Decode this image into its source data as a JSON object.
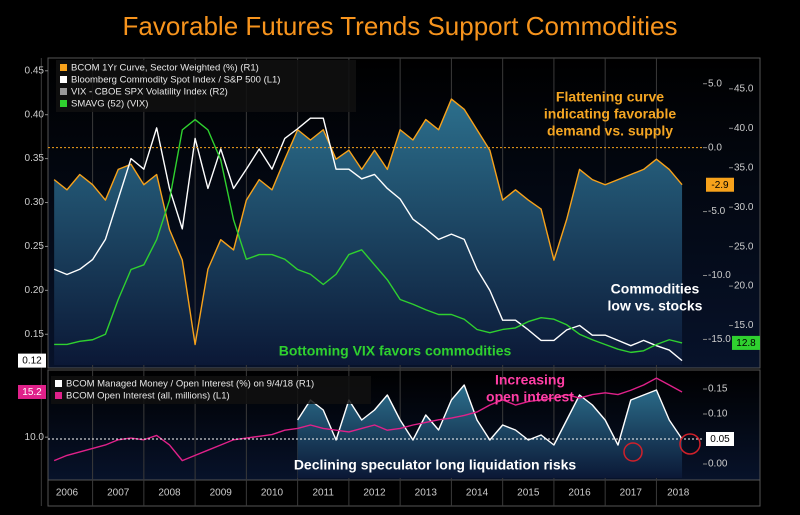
{
  "chart_data": [
    {
      "type": "line",
      "title": "Favorable Futures Trends Support Commodities",
      "x": [
        2006.25,
        2006.5,
        2006.75,
        2007,
        2007.25,
        2007.5,
        2007.75,
        2008,
        2008.25,
        2008.5,
        2008.75,
        2009,
        2009.25,
        2009.5,
        2009.75,
        2010,
        2010.25,
        2010.5,
        2010.75,
        2011,
        2011.25,
        2011.5,
        2011.75,
        2012,
        2012.25,
        2012.5,
        2012.75,
        2013,
        2013.25,
        2013.5,
        2013.75,
        2014,
        2014.25,
        2014.5,
        2014.75,
        2015,
        2015.25,
        2015.5,
        2015.75,
        2016,
        2016.25,
        2016.5,
        2016.75,
        2017,
        2017.25,
        2017.5,
        2017.75,
        2018,
        2018.25,
        2018.5
      ],
      "xlim": [
        2006.13,
        2018.85
      ],
      "ylim": [
        0.115,
        0.46
      ],
      "yticks": [
        0.45,
        {
          "value": 0.4,
          "label": "0.40"
        },
        0.35,
        {
          "value": 0.3,
          "label": "0.30"
        },
        0.25,
        {
          "value": 0.2,
          "label": "0.20"
        },
        0.15
      ],
      "y2lim": [
        -17,
        6.7
      ],
      "y2ticks": [
        {
          "value": 5,
          "label": "5.0"
        },
        {
          "value": 0,
          "label": "0.0"
        },
        {
          "value": -5,
          "label": "-5.0"
        },
        {
          "value": -10,
          "label": "-10.0"
        },
        {
          "value": -15,
          "label": "-15.0"
        }
      ],
      "y3lim": [
        10,
        48.4
      ],
      "y3ticks": [
        {
          "value": 45,
          "label": "45.0"
        },
        {
          "value": 40,
          "label": "40.0"
        },
        {
          "value": 35,
          "label": "35.0"
        },
        {
          "value": 30,
          "label": "30.0"
        },
        {
          "value": 25,
          "label": "25.0"
        },
        {
          "value": 20,
          "label": "20.0"
        },
        {
          "value": 15,
          "label": "15.0"
        }
      ],
      "reference_lines": [
        {
          "axis": "y2",
          "value": 0,
          "color": "#f7a21b"
        }
      ],
      "series": [
        {
          "name": "BCOM 1Yr Curve, Sector Weighted (%) (R1)",
          "color": "#f7a21b",
          "axis": "y2",
          "fill": true,
          "current": -2.9,
          "values": [
            -2.5,
            -3.3,
            -2.1,
            -2.9,
            -4.1,
            -1.7,
            -1.3,
            -2.9,
            -2.1,
            -6.4,
            -8.8,
            -15.4,
            -9.5,
            -7.2,
            -8.0,
            -4.1,
            -2.5,
            -3.3,
            -0.9,
            1.4,
            0.6,
            1.4,
            -0.9,
            -0.2,
            -1.7,
            -0.2,
            -1.7,
            1.4,
            0.6,
            2.2,
            1.4,
            3.8,
            3.0,
            1.4,
            -0.2,
            -4.1,
            -3.3,
            -4.1,
            -4.8,
            -8.8,
            -5.6,
            -1.7,
            -2.5,
            -2.9,
            -2.5,
            -2.1,
            -1.7,
            -0.9,
            -1.7,
            -2.9
          ]
        },
        {
          "name": "Bloomberg Commodity Spot Index / S&P 500 (L1)",
          "color": "#ffffff",
          "axis": "y",
          "current": 0.12,
          "values": [
            0.224,
            0.218,
            0.224,
            0.235,
            0.258,
            0.304,
            0.35,
            0.338,
            0.385,
            0.316,
            0.27,
            0.373,
            0.316,
            0.361,
            0.316,
            0.338,
            0.361,
            0.338,
            0.373,
            0.384,
            0.396,
            0.396,
            0.338,
            0.338,
            0.327,
            0.332,
            0.316,
            0.304,
            0.281,
            0.27,
            0.258,
            0.264,
            0.258,
            0.224,
            0.2,
            0.166,
            0.166,
            0.155,
            0.143,
            0.143,
            0.155,
            0.16,
            0.149,
            0.149,
            0.143,
            0.137,
            0.143,
            0.137,
            0.132,
            0.12
          ]
        },
        {
          "name": "VIX - CBOE SPX Volatility Index (R2)",
          "color": "#9a9a9a",
          "axis": "y3"
        },
        {
          "name": "SMAVG (52) (VIX)",
          "color": "#2fd12f",
          "axis": "y3",
          "current": 12.8,
          "values": [
            12.6,
            12.6,
            13,
            13.2,
            13.9,
            18.3,
            22.1,
            22.7,
            25.9,
            30.9,
            39.8,
            41.1,
            39.8,
            36,
            28.4,
            23.4,
            24,
            24,
            23.4,
            22.1,
            21.5,
            20.2,
            21.5,
            24,
            24.6,
            22.7,
            20.8,
            18.3,
            17.7,
            17,
            16.4,
            16.4,
            15.8,
            14.5,
            14.1,
            14.5,
            14.7,
            15.5,
            16,
            15.8,
            15.1,
            13.9,
            13.2,
            12.6,
            12,
            11.6,
            11.8,
            12.6,
            13.2,
            12.8
          ]
        }
      ],
      "annotations": [
        {
          "lines": [
            "Flattening curve",
            "indicating favorable",
            "demand vs. supply"
          ],
          "color": "#f5a623"
        },
        {
          "lines": [
            "Commodities",
            "low vs. stocks"
          ],
          "color": "#ffffff"
        },
        {
          "lines": [
            "Bottoming VIX favors commodities"
          ],
          "color": "#2fd12f"
        }
      ]
    },
    {
      "type": "line",
      "x": [
        2006.25,
        2006.5,
        2006.75,
        2007,
        2007.25,
        2007.5,
        2007.75,
        2008,
        2008.25,
        2008.5,
        2008.75,
        2009,
        2009.25,
        2009.5,
        2009.75,
        2010,
        2010.25,
        2010.5,
        2010.75,
        2011,
        2011.25,
        2011.5,
        2011.75,
        2012,
        2012.25,
        2012.5,
        2012.75,
        2013,
        2013.25,
        2013.5,
        2013.75,
        2014,
        2014.25,
        2014.5,
        2014.75,
        2015,
        2015.25,
        2015.5,
        2015.75,
        2016,
        2016.25,
        2016.5,
        2016.75,
        2017,
        2017.25,
        2017.5,
        2017.75,
        2018,
        2018.25,
        2018.5
      ],
      "xlim": [
        2006.13,
        2018.85
      ],
      "xticks": [
        2006,
        2007,
        2008,
        2009,
        2010,
        2011,
        2012,
        2013,
        2014,
        2015,
        2016,
        2017,
        2018
      ],
      "ylim": [
        5.3,
        17.5
      ],
      "yticks": [
        {
          "value": 10,
          "label": "10.0"
        }
      ],
      "y2lim": [
        -0.028,
        0.184
      ],
      "y2ticks": [
        {
          "value": 0.15,
          "label": "0.15"
        },
        {
          "value": 0.1,
          "label": "0.10"
        },
        {
          "value": 0,
          "label": "0.00"
        }
      ],
      "reference_lines": [
        {
          "axis": "y2",
          "value": 0.05,
          "color": "#ffffff"
        }
      ],
      "series": [
        {
          "name": "BCOM Managed Money / Open Interest (%) on 9/4/18 (R1)",
          "color": "#ffffff",
          "axis": "y2",
          "fill": true,
          "current": 0.05,
          "values": [
            null,
            null,
            null,
            null,
            null,
            null,
            null,
            null,
            null,
            null,
            null,
            null,
            null,
            null,
            null,
            null,
            null,
            null,
            null,
            0.088,
            0.128,
            0.108,
            0.048,
            0.128,
            0.088,
            0.108,
            0.138,
            0.088,
            0.048,
            0.098,
            0.068,
            0.128,
            0.158,
            0.088,
            0.048,
            0.078,
            0.068,
            0.048,
            0.058,
            0.038,
            0.088,
            0.138,
            0.118,
            0.088,
            0.038,
            0.128,
            0.138,
            0.148,
            0.088,
            0.05
          ]
        },
        {
          "name": "BCOM Open Interest (all, millions) (L1)",
          "color": "#e0218a",
          "axis": "y",
          "current": 15.2,
          "values": [
            7.3,
            7.9,
            8.3,
            8.7,
            9.1,
            9.7,
            9.9,
            9.7,
            10.2,
            9.1,
            7.3,
            7.9,
            8.5,
            9.1,
            9.7,
            9.9,
            10.1,
            10.3,
            10.8,
            11,
            11.4,
            11,
            10.8,
            10.6,
            11,
            11.4,
            10.8,
            11,
            11.4,
            11.7,
            12,
            12.2,
            12.5,
            12.9,
            13.7,
            14.3,
            13.7,
            14.1,
            14.3,
            14.5,
            14.9,
            14.5,
            14.9,
            15.1,
            14.9,
            15.4,
            16,
            16.8,
            16,
            15.2
          ]
        }
      ],
      "annotations": [
        {
          "lines": [
            "Increasing",
            "open interest"
          ],
          "color": "#ff3ea5"
        },
        {
          "lines": [
            "Declining speculator long liquidation risks"
          ],
          "color": "#ffffff"
        }
      ]
    }
  ]
}
